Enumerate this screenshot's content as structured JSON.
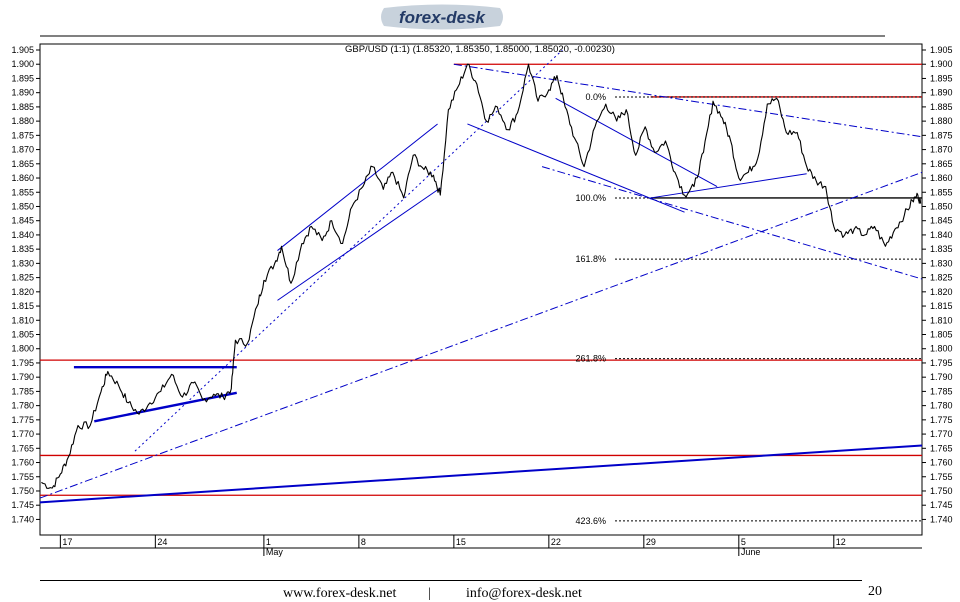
{
  "header": {
    "logo_text": "forex-desk"
  },
  "chart_data": {
    "type": "line",
    "title": "GBP/USD (1:1) (1.85320, 1.85350, 1.85000, 1.85020, -0.00230)",
    "ylim": [
      1.74,
      1.905
    ],
    "y_ticks": [
      "1.905",
      "1.900",
      "1.895",
      "1.890",
      "1.885",
      "1.880",
      "1.875",
      "1.870",
      "1.865",
      "1.860",
      "1.855",
      "1.850",
      "1.845",
      "1.840",
      "1.835",
      "1.830",
      "1.825",
      "1.820",
      "1.815",
      "1.810",
      "1.805",
      "1.800",
      "1.795",
      "1.790",
      "1.785",
      "1.780",
      "1.775",
      "1.770",
      "1.765",
      "1.760",
      "1.755",
      "1.750",
      "1.745",
      "1.740"
    ],
    "x_tick_labels": [
      "17",
      "24",
      "1",
      "8",
      "15",
      "22",
      "29",
      "5",
      "12"
    ],
    "x_month_labels": [
      "May",
      "June"
    ],
    "x_tick_days": [
      17,
      24,
      32,
      39,
      46,
      53,
      60,
      67,
      74
    ],
    "month_days": [
      32,
      67
    ],
    "x_range_days": [
      15.5,
      80.5
    ],
    "grid": false,
    "price_series": {
      "name": "GBP/USD",
      "color": "#000000",
      "anchors": [
        [
          15.6,
          1.753
        ],
        [
          16.4,
          1.751
        ],
        [
          17.0,
          1.756
        ],
        [
          17.6,
          1.762
        ],
        [
          18.3,
          1.773
        ],
        [
          19.2,
          1.773
        ],
        [
          20.0,
          1.785
        ],
        [
          20.5,
          1.792
        ],
        [
          21.3,
          1.787
        ],
        [
          22.0,
          1.781
        ],
        [
          22.8,
          1.777
        ],
        [
          23.6,
          1.781
        ],
        [
          24.4,
          1.785
        ],
        [
          25.2,
          1.791
        ],
        [
          26.0,
          1.783
        ],
        [
          26.8,
          1.788
        ],
        [
          27.5,
          1.782
        ],
        [
          28.3,
          1.784
        ],
        [
          29.0,
          1.783
        ],
        [
          29.6,
          1.786
        ],
        [
          29.9,
          1.803
        ],
        [
          30.8,
          1.802
        ],
        [
          31.5,
          1.815
        ],
        [
          32.0,
          1.824
        ],
        [
          32.8,
          1.83
        ],
        [
          33.3,
          1.836
        ],
        [
          34.0,
          1.823
        ],
        [
          34.8,
          1.837
        ],
        [
          35.5,
          1.843
        ],
        [
          36.3,
          1.838
        ],
        [
          37.0,
          1.845
        ],
        [
          37.8,
          1.837
        ],
        [
          38.5,
          1.85
        ],
        [
          39.3,
          1.857
        ],
        [
          40.0,
          1.864
        ],
        [
          40.8,
          1.856
        ],
        [
          41.5,
          1.862
        ],
        [
          42.3,
          1.853
        ],
        [
          43.0,
          1.868
        ],
        [
          43.8,
          1.863
        ],
        [
          44.5,
          1.861
        ],
        [
          45.0,
          1.854
        ],
        [
          45.6,
          1.884
        ],
        [
          46.3,
          1.892
        ],
        [
          47.0,
          1.9
        ],
        [
          47.7,
          1.893
        ],
        [
          48.4,
          1.88
        ],
        [
          49.2,
          1.885
        ],
        [
          50.0,
          1.877
        ],
        [
          50.7,
          1.883
        ],
        [
          51.5,
          1.9
        ],
        [
          52.2,
          1.887
        ],
        [
          53.0,
          1.891
        ],
        [
          53.6,
          1.896
        ],
        [
          54.2,
          1.885
        ],
        [
          54.9,
          1.874
        ],
        [
          55.6,
          1.864
        ],
        [
          56.4,
          1.878
        ],
        [
          57.2,
          1.886
        ],
        [
          58.0,
          1.88
        ],
        [
          58.7,
          1.884
        ],
        [
          59.4,
          1.868
        ],
        [
          60.1,
          1.878
        ],
        [
          60.8,
          1.869
        ],
        [
          61.6,
          1.873
        ],
        [
          62.3,
          1.862
        ],
        [
          63.0,
          1.854
        ],
        [
          63.7,
          1.857
        ],
        [
          64.4,
          1.869
        ],
        [
          65.1,
          1.887
        ],
        [
          65.8,
          1.881
        ],
        [
          66.4,
          1.873
        ],
        [
          67.0,
          1.86
        ],
        [
          67.7,
          1.862
        ],
        [
          68.4,
          1.867
        ],
        [
          69.1,
          1.886
        ],
        [
          69.8,
          1.888
        ],
        [
          70.5,
          1.876
        ],
        [
          71.3,
          1.876
        ],
        [
          72.0,
          1.864
        ],
        [
          72.7,
          1.859
        ],
        [
          73.4,
          1.857
        ],
        [
          74.0,
          1.843
        ],
        [
          74.8,
          1.84
        ],
        [
          75.5,
          1.842
        ],
        [
          76.3,
          1.84
        ],
        [
          77.0,
          1.843
        ],
        [
          77.8,
          1.836
        ],
        [
          78.5,
          1.842
        ],
        [
          79.2,
          1.847
        ],
        [
          79.8,
          1.852
        ],
        [
          80.2,
          1.854
        ],
        [
          80.4,
          1.851
        ]
      ]
    },
    "fibonacci": [
      {
        "label": "0.0%",
        "y": 1.8885
      },
      {
        "label": "100.0%",
        "y": 1.853
      },
      {
        "label": "161.8%",
        "y": 1.8315
      },
      {
        "label": "261.8%",
        "y": 1.7965
      },
      {
        "label": "423.6%",
        "y": 1.7395
      }
    ],
    "horizontal_levels": [
      {
        "y": 1.9,
        "x0": 46.0,
        "color": "#d00000"
      },
      {
        "y": 1.8885,
        "x0": 60.5,
        "color": "#d00000"
      },
      {
        "y": 1.796,
        "x0": 15.5,
        "color": "#d00000"
      },
      {
        "y": 1.7625,
        "x0": 15.5,
        "color": "#d00000"
      },
      {
        "y": 1.7485,
        "x0": 15.5,
        "color": "#d00000"
      },
      {
        "y": 1.853,
        "x0": 60.5,
        "color": "#000000"
      }
    ],
    "trendlines": [
      {
        "p1": [
          18.0,
          1.7935
        ],
        "p2": [
          30.0,
          1.7935
        ],
        "style": "solid",
        "width": 2.4,
        "color": "#0000c8"
      },
      {
        "p1": [
          19.5,
          1.7745
        ],
        "p2": [
          30.0,
          1.7845
        ],
        "style": "solid",
        "width": 2.4,
        "color": "#0000c8"
      },
      {
        "p1": [
          15.5,
          1.746
        ],
        "p2": [
          80.5,
          1.766
        ],
        "style": "solid",
        "width": 2.0,
        "color": "#0000c8"
      },
      {
        "p1": [
          33.0,
          1.817
        ],
        "p2": [
          45.0,
          1.8565
        ],
        "style": "solid",
        "width": 1.0,
        "color": "#0000c8"
      },
      {
        "p1": [
          33.0,
          1.8345
        ],
        "p2": [
          44.8,
          1.879
        ],
        "style": "solid",
        "width": 1.0,
        "color": "#0000c8"
      },
      {
        "p1": [
          47.0,
          1.879
        ],
        "p2": [
          63.0,
          1.848
        ],
        "style": "solid",
        "width": 1.0,
        "color": "#0000c8"
      },
      {
        "p1": [
          53.5,
          1.888
        ],
        "p2": [
          65.4,
          1.857
        ],
        "style": "solid",
        "width": 1.0,
        "color": "#0000c8"
      },
      {
        "p1": [
          60.5,
          1.853
        ],
        "p2": [
          72.0,
          1.8615
        ],
        "style": "solid",
        "width": 1.0,
        "color": "#0000c8"
      },
      {
        "p1": [
          22.5,
          1.764
        ],
        "p2": [
          54.0,
          1.905
        ],
        "style": "dotted",
        "width": 1.0,
        "color": "#0000c8"
      },
      {
        "p1": [
          15.5,
          1.7475
        ],
        "p2": [
          80.5,
          1.862
        ],
        "style": "dashdot",
        "width": 1.0,
        "color": "#0000c8"
      },
      {
        "p1": [
          46.0,
          1.9
        ],
        "p2": [
          80.5,
          1.8745
        ],
        "style": "dashdot",
        "width": 1.0,
        "color": "#0000c8"
      },
      {
        "p1": [
          52.5,
          1.864
        ],
        "p2": [
          80.5,
          1.8245
        ],
        "style": "dashdot",
        "width": 1.0,
        "color": "#0000c8"
      }
    ]
  },
  "footer": {
    "website": "www.forex-desk.net",
    "separator": "|",
    "email": "info@forex-desk.net",
    "page_number": "20"
  }
}
